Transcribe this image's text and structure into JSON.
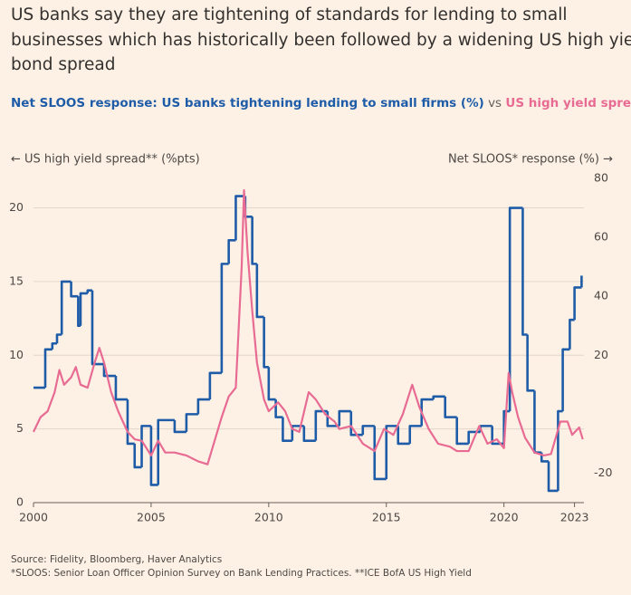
{
  "chart_data": {
    "type": "line",
    "title": [
      "US banks say they are tightening of standards for lending to small",
      "businesses which has historically been followed by a widening US high yield",
      "bond spread"
    ],
    "subtitle_joiner": "vs",
    "ylabel": "← US high yield spread** (%pts)",
    "y2label": "Net SLOOS* response (%) →",
    "source": [
      "Source: Fidelity, Bloomberg, Haver Analytics",
      "*SLOOS: Senior Loan Officer Opinion Survey on Bank Lending Practices. **ICE BofA US High Yield"
    ],
    "xlim": [
      2000,
      2023.4
    ],
    "xticks": [
      2000,
      2005,
      2010,
      2015,
      2020,
      2023
    ],
    "ylim": [
      0,
      22
    ],
    "yticks": [
      0,
      5,
      10,
      15,
      20
    ],
    "y2lim": [
      -30,
      80
    ],
    "y2ticks": [
      -20,
      20,
      40,
      60,
      80
    ],
    "grid": true,
    "series": [
      {
        "name": "Net SLOOS response: US banks tightening lending to small firms (%)",
        "color": "#1f5ca8",
        "axis": "y2",
        "step": true,
        "x": [
          2000.0,
          2000.5,
          2000.8,
          2001.0,
          2001.2,
          2001.6,
          2001.9,
          2002.0,
          2002.3,
          2002.5,
          2003.0,
          2003.5,
          2004.0,
          2004.3,
          2004.6,
          2005.0,
          2005.3,
          2006.0,
          2006.5,
          2007.0,
          2007.5,
          2008.0,
          2008.3,
          2008.6,
          2009.0,
          2009.3,
          2009.5,
          2009.8,
          2010.0,
          2010.3,
          2010.6,
          2011.0,
          2011.5,
          2012.0,
          2012.5,
          2013.0,
          2013.5,
          2014.0,
          2014.5,
          2015.0,
          2015.5,
          2016.0,
          2016.5,
          2017.0,
          2017.5,
          2018.0,
          2018.5,
          2019.0,
          2019.5,
          2020.0,
          2020.25,
          2020.8,
          2021.0,
          2021.3,
          2021.6,
          2021.9,
          2022.3,
          2022.5,
          2022.8,
          2023.0,
          2023.3
        ],
        "values": [
          9,
          22,
          24,
          27,
          45,
          40,
          30,
          41,
          42,
          17,
          13,
          5,
          -10,
          -18,
          -4,
          -24,
          -2,
          -6,
          0,
          5,
          14,
          51,
          59,
          74,
          67,
          51,
          33,
          16,
          5,
          -1,
          -9,
          -4,
          -9,
          1,
          -4,
          1,
          -7,
          -4,
          -22,
          -4,
          -10,
          -4,
          5,
          6,
          -1,
          -10,
          -6,
          -4,
          -10,
          1,
          70,
          27,
          8,
          -13,
          -16,
          -26,
          1,
          22,
          32,
          43,
          47
        ]
      },
      {
        "name": "US high yield spread (%pts)",
        "color": "#e86b93",
        "axis": "y",
        "x": [
          2000.0,
          2000.3,
          2000.6,
          2000.9,
          2001.1,
          2001.3,
          2001.6,
          2001.8,
          2002.0,
          2002.3,
          2002.6,
          2002.8,
          2003.0,
          2003.3,
          2003.6,
          2004.0,
          2004.3,
          2004.6,
          2005.0,
          2005.3,
          2005.6,
          2006.0,
          2006.5,
          2007.0,
          2007.4,
          2007.7,
          2008.0,
          2008.3,
          2008.6,
          2008.85,
          2008.95,
          2009.1,
          2009.3,
          2009.5,
          2009.8,
          2010.0,
          2010.4,
          2010.7,
          2011.0,
          2011.3,
          2011.7,
          2012.0,
          2012.4,
          2012.8,
          2013.0,
          2013.5,
          2014.0,
          2014.5,
          2014.9,
          2015.3,
          2015.7,
          2016.1,
          2016.4,
          2016.8,
          2017.2,
          2017.7,
          2018.0,
          2018.5,
          2018.95,
          2019.3,
          2019.7,
          2020.0,
          2020.2,
          2020.35,
          2020.6,
          2020.9,
          2021.3,
          2021.7,
          2022.0,
          2022.4,
          2022.7,
          2022.9,
          2023.2,
          2023.35
        ],
        "values": [
          4.8,
          5.8,
          6.2,
          7.5,
          9,
          8,
          8.5,
          9.2,
          8,
          7.8,
          9.5,
          10.5,
          9.5,
          7.5,
          6.2,
          4.8,
          4.3,
          4.2,
          3.2,
          4.2,
          3.4,
          3.4,
          3.2,
          2.8,
          2.6,
          4.2,
          5.8,
          7.2,
          7.8,
          16,
          21.2,
          17,
          13,
          9.5,
          7,
          6.2,
          6.8,
          6.2,
          5,
          4.8,
          7.5,
          7,
          6,
          5.5,
          5,
          5.2,
          4,
          3.5,
          5,
          4.6,
          6,
          8,
          6.5,
          5,
          4,
          3.8,
          3.5,
          3.5,
          5.2,
          4,
          4.3,
          3.7,
          8.8,
          7.5,
          5.8,
          4.4,
          3.4,
          3.2,
          3.3,
          5.5,
          5.5,
          4.6,
          5.1,
          4.3
        ]
      }
    ]
  }
}
